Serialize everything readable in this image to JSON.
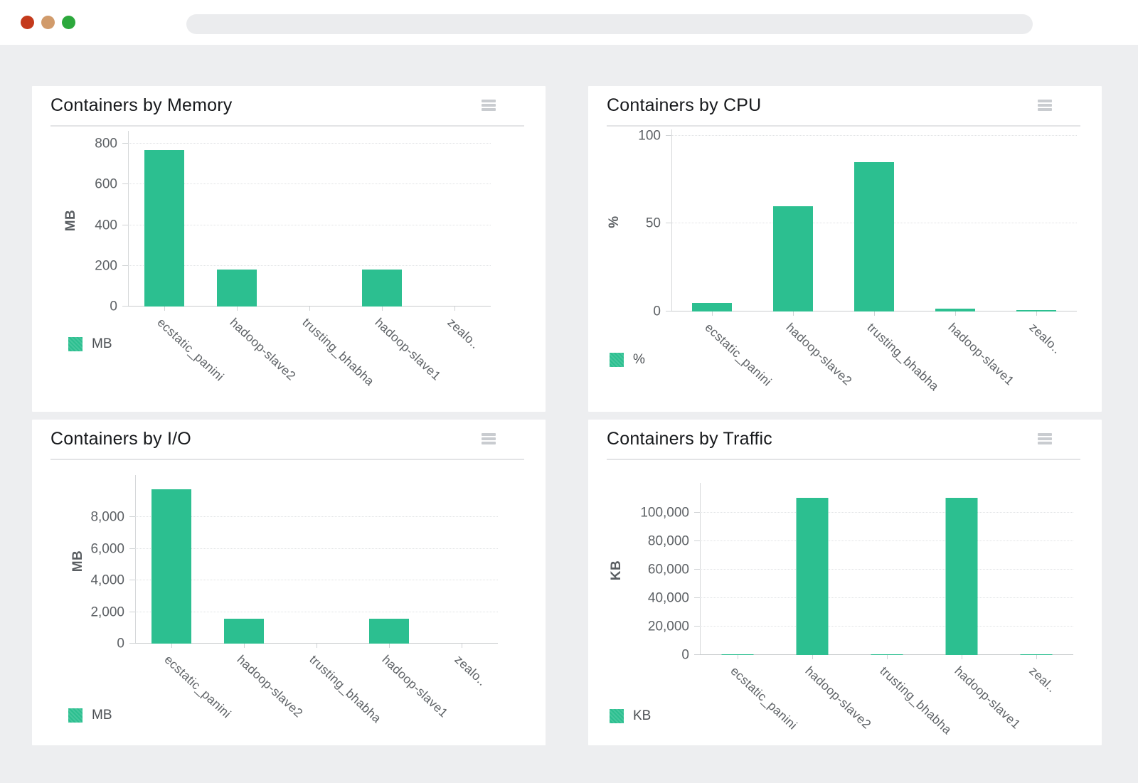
{
  "colors": {
    "bar": "#2cbf90",
    "dot_red": "#c43a1c",
    "dot_orange": "#d19b6b",
    "dot_green": "#2ca83c"
  },
  "window": {
    "address_value": ""
  },
  "chart_data": [
    {
      "type": "bar",
      "title": "Containers by Memory",
      "ylabel": "MB",
      "legend": "MB",
      "categories": [
        "ecstatic_panini",
        "hadoop-slave2",
        "trusting_bhabha",
        "hadoop-slave1",
        "zealo.."
      ],
      "values": [
        770,
        182,
        0,
        182,
        0
      ],
      "ylim": [
        0,
        850
      ],
      "y_ticks": [
        {
          "value": 0,
          "label": "0"
        },
        {
          "value": 200,
          "label": "200"
        },
        {
          "value": 400,
          "label": "400"
        },
        {
          "value": 600,
          "label": "600"
        },
        {
          "value": 800,
          "label": "800"
        }
      ],
      "grid": "dotted-horizontal",
      "legend_position": "bottom-left"
    },
    {
      "type": "bar",
      "title": "Containers by CPU",
      "ylabel": "%",
      "legend": "%",
      "categories": [
        "ecstatic_panini",
        "hadoop-slave2",
        "trusting_bhabha",
        "hadoop-slave1",
        "zealo.."
      ],
      "values": [
        5,
        60,
        85,
        1.5,
        1
      ],
      "ylim": [
        0,
        102
      ],
      "y_ticks": [
        {
          "value": 0,
          "label": "0"
        },
        {
          "value": 50,
          "label": "50"
        },
        {
          "value": 100,
          "label": "100"
        }
      ],
      "grid": "dotted-horizontal",
      "legend_position": "bottom-left"
    },
    {
      "type": "bar",
      "title": "Containers by I/O",
      "ylabel": "MB",
      "legend": "MB",
      "categories": [
        "ecstatic_panini",
        "hadoop-slave2",
        "trusting_bhabha",
        "hadoop-slave1",
        "zealo.."
      ],
      "values": [
        9800,
        1600,
        0,
        1600,
        0
      ],
      "ylim": [
        0,
        10500
      ],
      "y_ticks": [
        {
          "value": 0,
          "label": "0"
        },
        {
          "value": 2000,
          "label": "2,000"
        },
        {
          "value": 4000,
          "label": "4,000"
        },
        {
          "value": 6000,
          "label": "6,000"
        },
        {
          "value": 8000,
          "label": "8,000"
        }
      ],
      "grid": "dotted-horizontal",
      "legend_position": "bottom-left"
    },
    {
      "type": "bar",
      "title": "Containers by Traffic",
      "ylabel": "KB",
      "legend": "KB",
      "categories": [
        "ecstatic_panini",
        "hadoop-slave2",
        "trusting_bhabha",
        "hadoop-slave1",
        "zeal.."
      ],
      "values": [
        600,
        110500,
        600,
        110500,
        600
      ],
      "ylim": [
        0,
        119000
      ],
      "y_ticks": [
        {
          "value": 0,
          "label": "0"
        },
        {
          "value": 20000,
          "label": "20,000"
        },
        {
          "value": 40000,
          "label": "40,000"
        },
        {
          "value": 60000,
          "label": "60,000"
        },
        {
          "value": 80000,
          "label": "80,000"
        },
        {
          "value": 100000,
          "label": "100,000"
        }
      ],
      "grid": "dotted-horizontal",
      "legend_position": "bottom-left"
    }
  ]
}
